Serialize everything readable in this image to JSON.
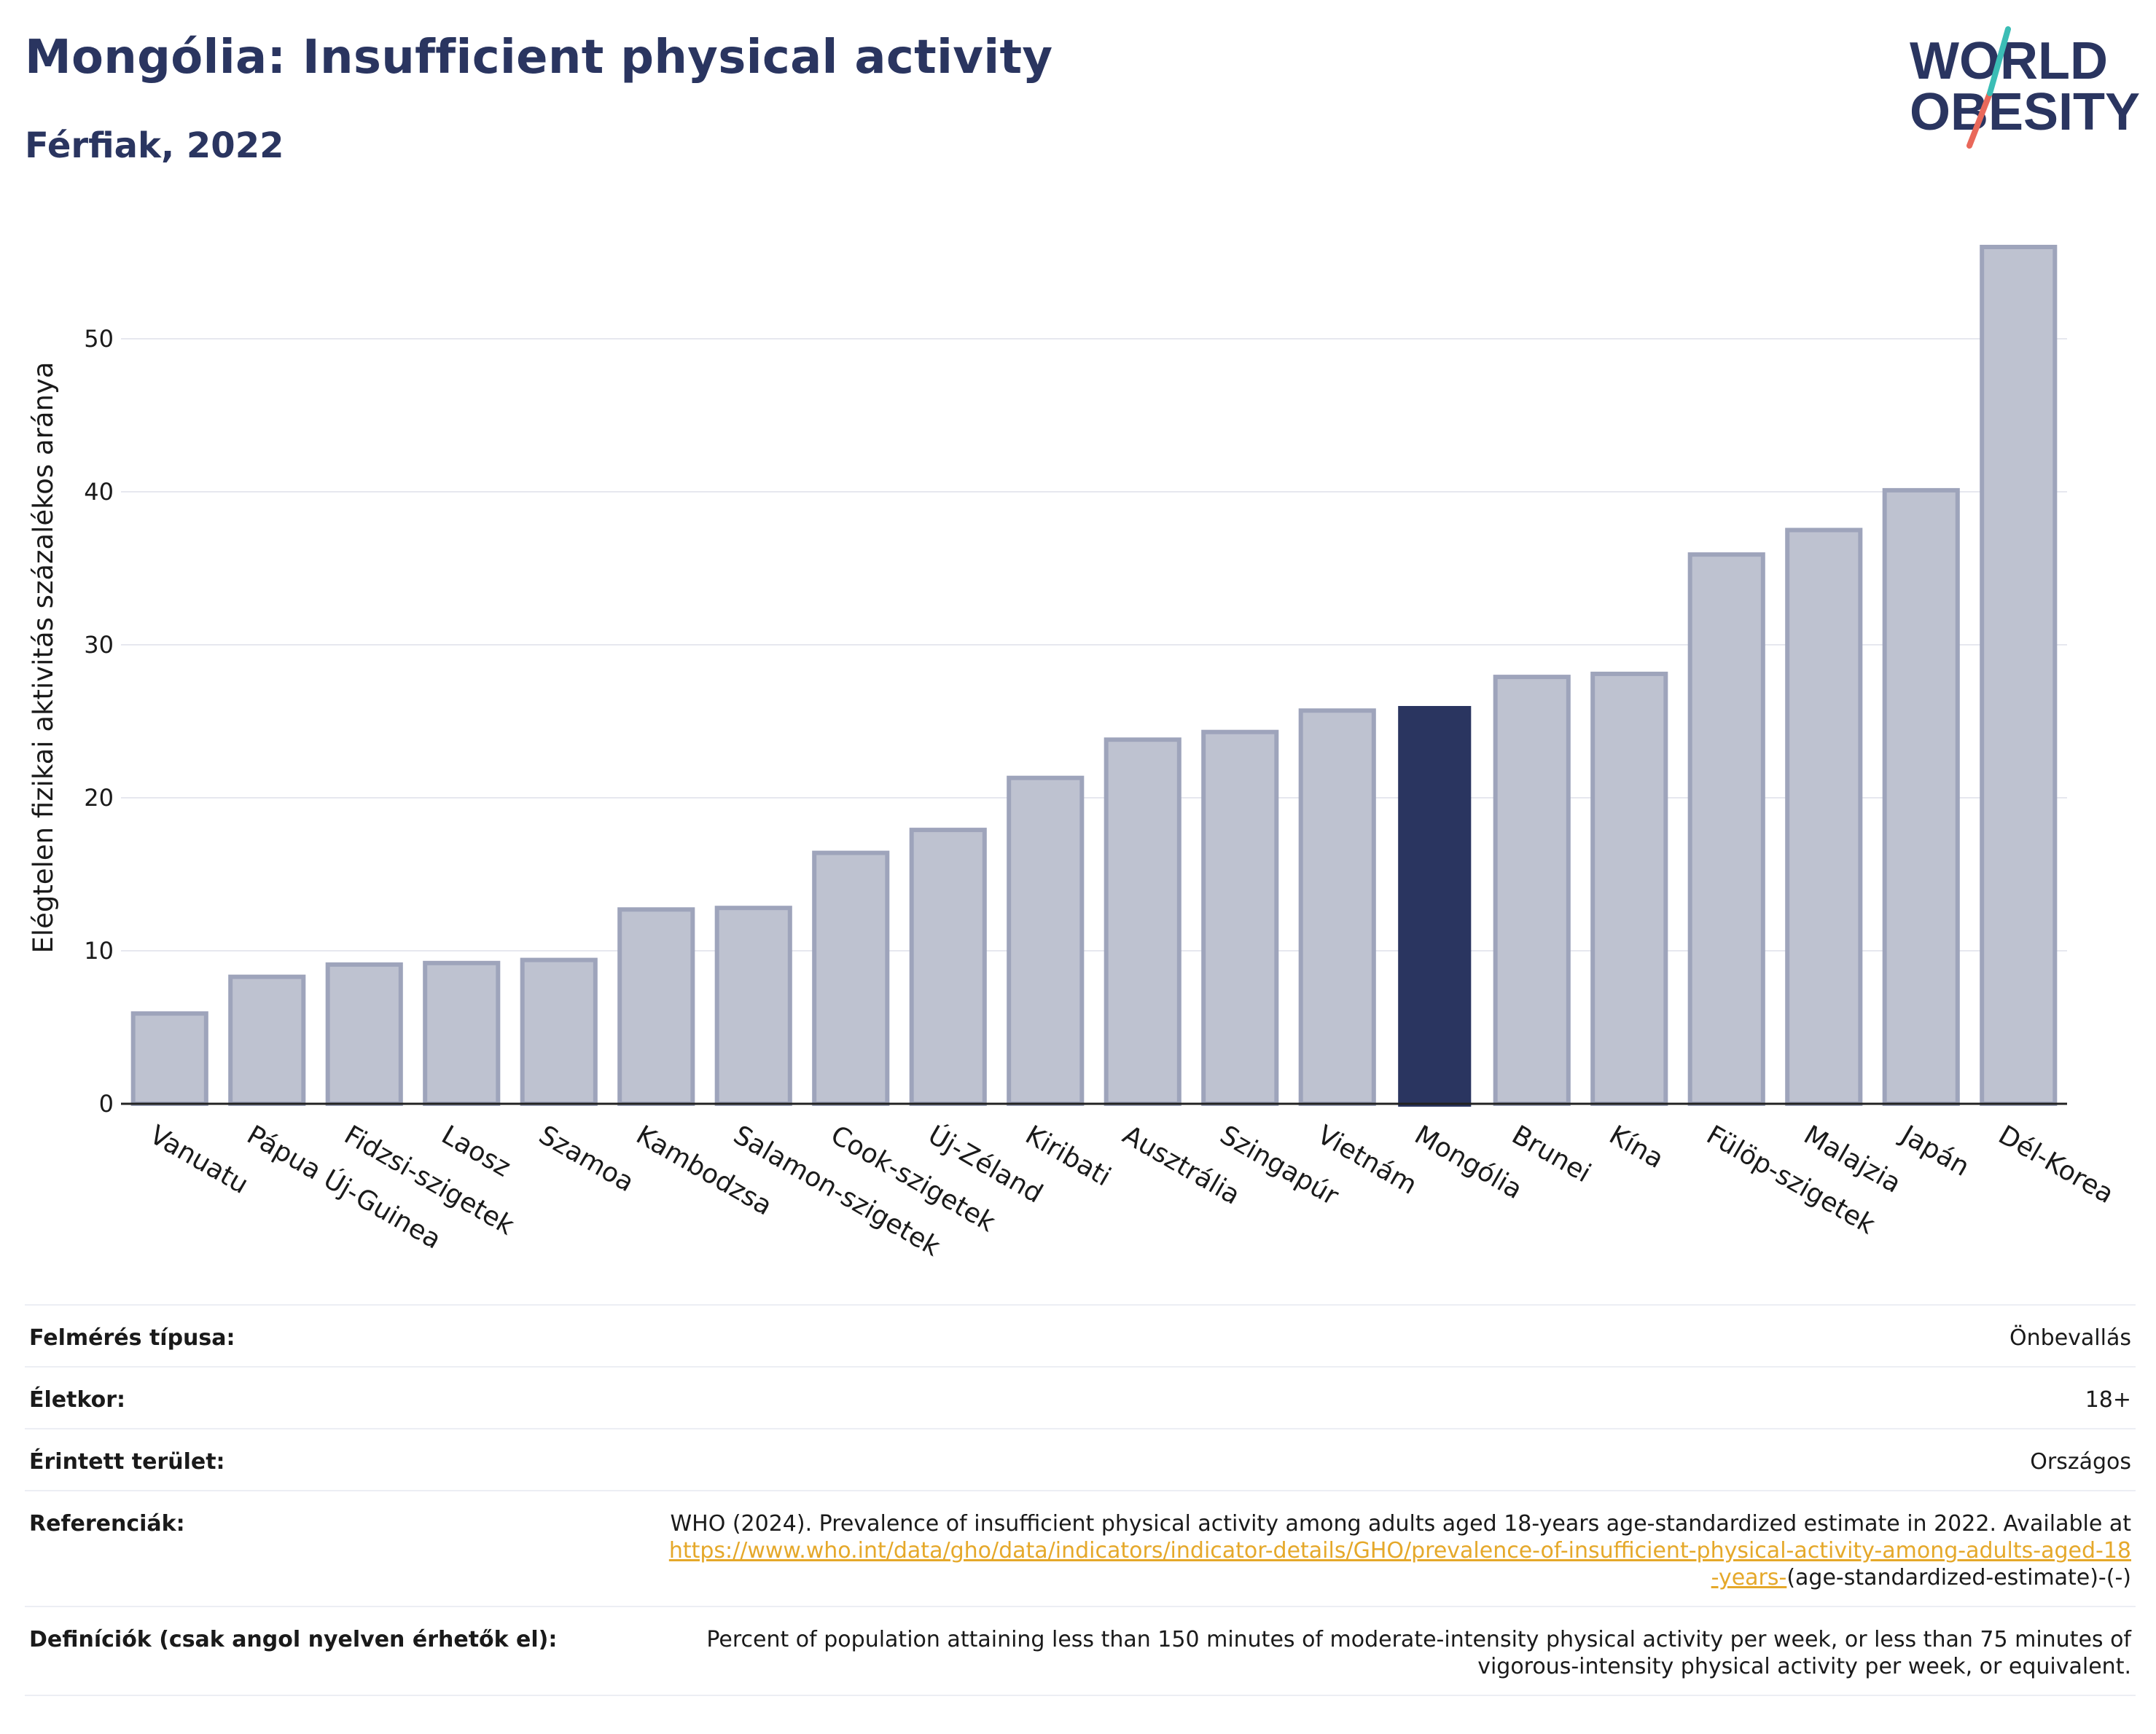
{
  "header": {
    "title": "Mongólia: Insufficient physical activity",
    "subtitle": "Férfiak, 2022"
  },
  "logo": {
    "line1": "WORLD",
    "line2": "OBESITY"
  },
  "colors": {
    "highlight": "#2a3560",
    "bar_fill": "#bec2d0",
    "bar_stroke": "#9ea4bb",
    "title": "#2a3560",
    "link": "#e5a82a",
    "logo_teal": "#3bbdb5",
    "logo_coral": "#e9685a"
  },
  "chart_data": {
    "type": "bar",
    "ylabel": "Elégtelen fizikai aktivitás százalékos aránya",
    "xlabel": "",
    "ylim": [
      0,
      56
    ],
    "yticks": [
      0,
      10,
      20,
      30,
      40,
      50
    ],
    "grid": true,
    "highlight": "Mongólia",
    "categories": [
      "Vanuatu",
      "Pápua Új-Guinea",
      "Fidzsi-szigetek",
      "Laosz",
      "Szamoa",
      "Kambodzsa",
      "Salamon-szigetek",
      "Cook-szigetek",
      "Új-Zéland",
      "Kiribati",
      "Ausztrália",
      "Szingapúr",
      "Vietnám",
      "Mongólia",
      "Brunei",
      "Kína",
      "Fülöp-szigetek",
      "Malajzia",
      "Japán",
      "Dél-Korea"
    ],
    "values": [
      5.9,
      8.3,
      9.1,
      9.2,
      9.4,
      12.7,
      12.8,
      16.4,
      17.9,
      21.3,
      23.8,
      24.3,
      25.7,
      26.0,
      27.9,
      28.1,
      35.9,
      37.5,
      40.1,
      56.0
    ]
  },
  "info": {
    "rows": [
      {
        "key": "Felmérés típusa:",
        "value": "Önbevallás"
      },
      {
        "key": "Életkor:",
        "value": "18+"
      },
      {
        "key": "Érintett terület:",
        "value": "Országos"
      }
    ],
    "references": {
      "key": "Referenciák:",
      "text": "WHO (2024). Prevalence of insufficient physical activity among adults aged 18-years age-standardized estimate in 2022. Available at",
      "link": "https://www.who.int/data/gho/data/indicators/indicator-details/GHO/prevalence-of-insufficient-physical-activity-among-adults-aged-18-years-",
      "suffix": "(age-standardized-estimate)-(-)"
    },
    "definitions": {
      "key": "Definíciók (csak angol nyelven érhetők el):",
      "value": "Percent of population attaining less than 150 minutes of moderate-intensity physical activity per week, or less than 75 minutes of vigorous-intensity physical activity per week, or equivalent."
    }
  }
}
